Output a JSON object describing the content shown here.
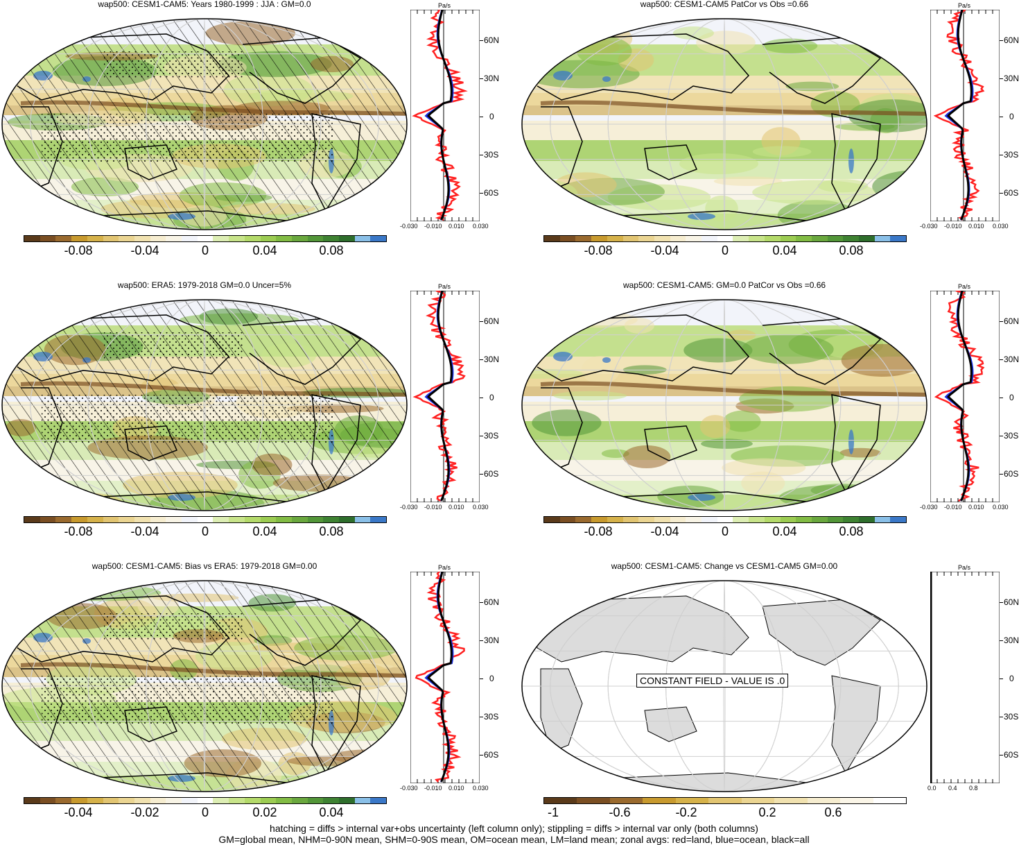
{
  "panels": [
    {
      "title": "wap500: CESM1-CAM5: Years 1980-1999 : JJA : GM=0.0",
      "colorbar_ticks": [
        "-0.08",
        "-0.04",
        "0",
        "0.04",
        "0.08"
      ],
      "zonal_units": "Pa/s",
      "zonal_x_ticks": [
        "-0.030",
        "-0.010",
        "0.010",
        "0.030"
      ],
      "lat_ticks": [
        "60N",
        "30N",
        "0",
        "30S",
        "60S"
      ]
    },
    {
      "title": "wap500: CESM1-CAM5 PatCor vs Obs =0.66",
      "colorbar_ticks": [
        "-0.08",
        "-0.04",
        "0",
        "0.04",
        "0.08"
      ],
      "zonal_units": "Pa/s",
      "zonal_x_ticks": [
        "-0.030",
        "-0.010",
        "0.010",
        "0.030"
      ],
      "lat_ticks": [
        "60N",
        "30N",
        "0",
        "30S",
        "60S"
      ]
    },
    {
      "title": "wap500: ERA5: 1979-2018 GM=0.0 Uncer=5%",
      "colorbar_ticks": [
        "-0.08",
        "-0.04",
        "0",
        "0.04",
        "0.08"
      ],
      "zonal_units": "Pa/s",
      "zonal_x_ticks": [
        "-0.030",
        "-0.010",
        "0.010",
        "0.030"
      ],
      "lat_ticks": [
        "60N",
        "30N",
        "0",
        "30S",
        "60S"
      ]
    },
    {
      "title": "wap500: CESM1-CAM5: GM=0.0 PatCor vs Obs =0.66",
      "colorbar_ticks": [
        "-0.08",
        "-0.04",
        "0",
        "0.04",
        "0.08"
      ],
      "zonal_units": "Pa/s",
      "zonal_x_ticks": [
        "-0.030",
        "-0.010",
        "0.010",
        "0.030"
      ],
      "lat_ticks": [
        "60N",
        "30N",
        "0",
        "30S",
        "60S"
      ]
    },
    {
      "title": "wap500: CESM1-CAM5: Bias vs ERA5: 1979-2018 GM=0.00",
      "colorbar_ticks": [
        "-0.04",
        "-0.02",
        "0",
        "0.02",
        "0.04"
      ],
      "zonal_units": "Pa/s",
      "zonal_x_ticks": [
        "-0.030",
        "-0.010",
        "0.010",
        "0.030"
      ],
      "lat_ticks": [
        "60N",
        "30N",
        "0",
        "30S",
        "60S"
      ]
    },
    {
      "title": "wap500: CESM1-CAM5: Change vs CESM1-CAM5 GM=0.00",
      "colorbar_ticks": [
        "-1",
        "-0.6",
        "-0.2",
        "0.2",
        "0.6"
      ],
      "zonal_units": "Pa/s",
      "zonal_x_ticks": [
        "0.0",
        "0.4",
        "0.8"
      ],
      "lat_ticks": [
        "60N",
        "30N",
        "0",
        "30S",
        "60S"
      ],
      "constant_field_label": "CONSTANT FIELD - VALUE IS .0"
    }
  ],
  "colors": {
    "div_palette": [
      "#5a3a1a",
      "#7a4e22",
      "#9a6a2e",
      "#c89a2e",
      "#d6b24a",
      "#e2c572",
      "#ebd592",
      "#f1e2b0",
      "#f6edd0",
      "#f8f4e6",
      "#f2f4fa",
      "#ffffff",
      "#ddeeb4",
      "#c8e48a",
      "#b4da6a",
      "#9ccc52",
      "#82bc44",
      "#6aa83e",
      "#529638",
      "#3e8232",
      "#2e6e2c",
      "#8ac0e8",
      "#3a78c8"
    ],
    "grey_palette": [
      "#5a3a1a",
      "#7a4e22",
      "#9a6a2e",
      "#c89a2e",
      "#d6b24a",
      "#e2c572",
      "#ebd592",
      "#f1e2b0",
      "#f6edd0",
      "#fbf6e8",
      "#ffffff"
    ],
    "land": "#dcdcdc",
    "zonal_land": "#ff2020",
    "zonal_ocean": "#1a2ee0",
    "zonal_all": "#000000"
  },
  "footer": {
    "line1": "hatching = diffs > internal var+obs uncertainty (left column only); stippling = diffs > internal var only (both columns)",
    "line2": "GM=global mean, NHM=0-90N mean, SHM=0-90S mean, OM=ocean mean, LM=land mean; zonal avgs: red=land, blue=ocean, black=all"
  }
}
